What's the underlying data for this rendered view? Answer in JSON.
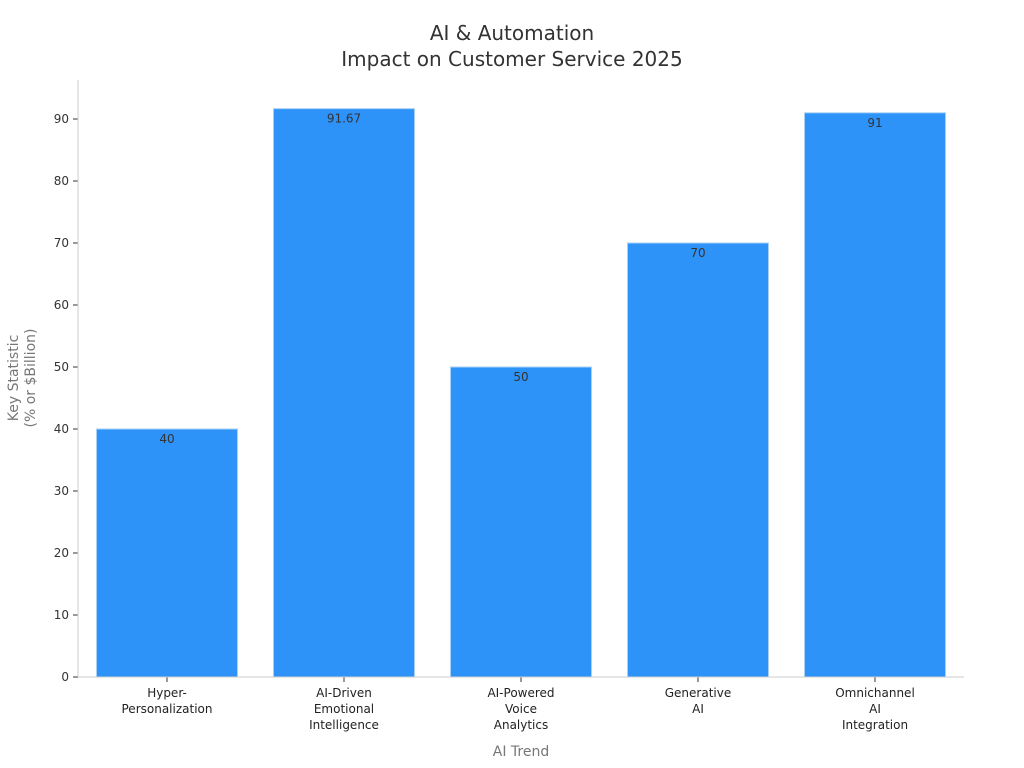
{
  "chart_data": {
    "type": "bar",
    "title_lines": [
      "AI & Automation",
      "Impact on Customer Service 2025"
    ],
    "categories": [
      [
        "Hyper-",
        "Personalization"
      ],
      [
        "AI-Driven",
        "Emotional",
        "Intelligence"
      ],
      [
        "AI-Powered",
        "Voice",
        "Analytics"
      ],
      [
        "Generative",
        "AI"
      ],
      [
        "Omnichannel",
        "AI",
        "Integration"
      ]
    ],
    "values": [
      40,
      91.67,
      50,
      70,
      91
    ],
    "data_labels": [
      "40",
      "91.67",
      "50",
      "70",
      "91"
    ],
    "xlabel": "AI Trend",
    "ylabel_lines": [
      "Key Statistic",
      "(% or $Billion)"
    ],
    "ylim": [
      0,
      96.25
    ],
    "yticks": [
      0,
      10,
      20,
      30,
      40,
      50,
      60,
      70,
      80,
      90
    ],
    "grid": false,
    "bar_color": "#2e93f8",
    "bar_edge_color": "#a8d0f5"
  }
}
